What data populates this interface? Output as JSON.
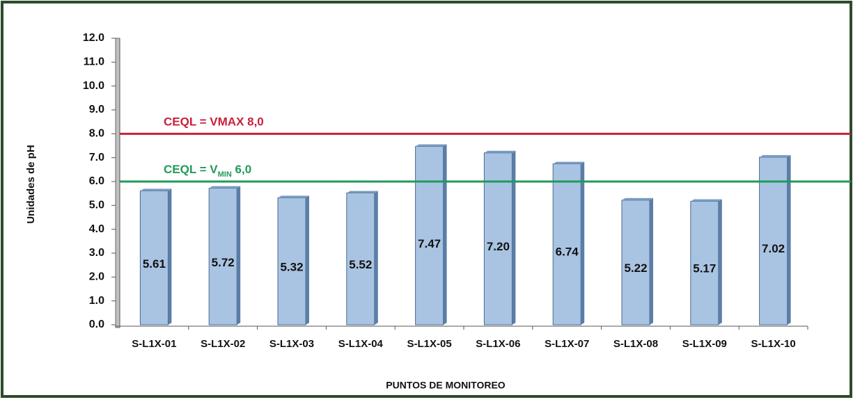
{
  "chart_data": {
    "type": "bar",
    "y_label": "Unidades de pH",
    "x_label": "PUNTOS DE MONITOREO",
    "categories": [
      "S-L1X-01",
      "S-L1X-02",
      "S-L1X-03",
      "S-L1X-04",
      "S-L1X-05",
      "S-L1X-06",
      "S-L1X-07",
      "S-L1X-08",
      "S-L1X-09",
      "S-L1X-10"
    ],
    "values": [
      5.61,
      5.72,
      5.32,
      5.52,
      7.47,
      7.2,
      6.74,
      5.22,
      5.17,
      7.02
    ],
    "value_labels": [
      "5.61",
      "5.72",
      "5.32",
      "5.52",
      "7.47",
      "7.20",
      "6.74",
      "5.22",
      "5.17",
      "7.02"
    ],
    "color": "#a9c4e2",
    "ylim": [
      0,
      12
    ],
    "yticks": [
      {
        "value": 0,
        "label": "0.0"
      },
      {
        "value": 1,
        "label": "1.0"
      },
      {
        "value": 2,
        "label": "2.0"
      },
      {
        "value": 3,
        "label": "3.0"
      },
      {
        "value": 4,
        "label": "4.0"
      },
      {
        "value": 5,
        "label": "5.0"
      },
      {
        "value": 6,
        "label": "6.0"
      },
      {
        "value": 7,
        "label": "7.0"
      },
      {
        "value": 8,
        "label": "8.0"
      },
      {
        "value": 9,
        "label": "9.0"
      },
      {
        "value": 10,
        "label": "10.0"
      },
      {
        "value": 11,
        "label": "11.0"
      },
      {
        "value": 12,
        "label": "12.0"
      }
    ],
    "reference_lines": [
      {
        "value": 8,
        "color": "#c8203a",
        "label_parts": [
          "CEQL =  VMAX 8,0"
        ]
      },
      {
        "value": 6,
        "color": "#1f9a5a",
        "label_parts": [
          "CEQL =  V",
          "MIN",
          " 6,0"
        ]
      }
    ]
  }
}
